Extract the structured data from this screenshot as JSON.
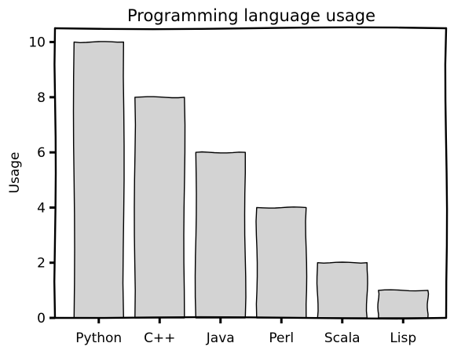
{
  "chart_data": {
    "type": "bar",
    "title": "Programming language usage",
    "xlabel": "",
    "ylabel": "Usage",
    "categories": [
      "Python",
      "C++",
      "Java",
      "Perl",
      "Scala",
      "Lisp"
    ],
    "values": [
      10,
      8,
      6,
      4,
      2,
      1
    ],
    "ylim": [
      0,
      10.5
    ],
    "yticks": [
      0,
      2,
      4,
      6,
      8,
      10
    ],
    "grid": false,
    "style": "xkcd",
    "colors": {
      "bar_fill": "#d3d3d3",
      "bar_stroke": "#000000",
      "axis": "#000000",
      "background": "#ffffff"
    }
  }
}
